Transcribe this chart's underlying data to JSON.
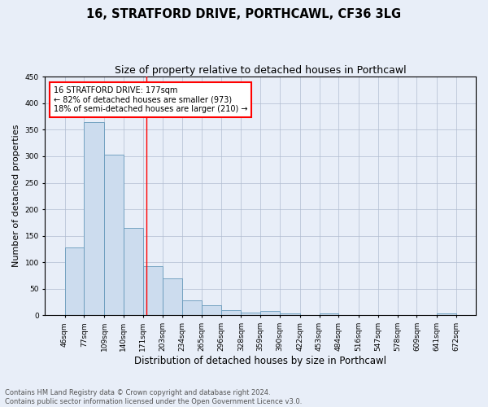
{
  "title1": "16, STRATFORD DRIVE, PORTHCAWL, CF36 3LG",
  "title2": "Size of property relative to detached houses in Porthcawl",
  "xlabel": "Distribution of detached houses by size in Porthcawl",
  "ylabel": "Number of detached properties",
  "bar_heights": [
    128,
    365,
    303,
    165,
    93,
    70,
    29,
    19,
    10,
    6,
    9,
    4,
    1,
    3,
    0,
    1,
    0,
    0,
    0,
    3
  ],
  "bar_labels": [
    "46sqm",
    "77sqm",
    "109sqm",
    "140sqm",
    "171sqm",
    "203sqm",
    "234sqm",
    "265sqm",
    "296sqm",
    "328sqm",
    "359sqm",
    "390sqm",
    "422sqm",
    "453sqm",
    "484sqm",
    "516sqm",
    "547sqm",
    "578sqm",
    "609sqm",
    "641sqm",
    "672sqm"
  ],
  "bar_color": "#ccdcee",
  "bar_edge_color": "#6699bb",
  "annotation_line1": "16 STRATFORD DRIVE: 177sqm",
  "annotation_line2": "← 82% of detached houses are smaller (973)",
  "annotation_line3": "18% of semi-detached houses are larger (210) →",
  "property_line_x": 177,
  "bin_edges": [
    46,
    77,
    109,
    140,
    171,
    203,
    234,
    265,
    296,
    328,
    359,
    390,
    422,
    453,
    484,
    516,
    547,
    578,
    609,
    641,
    672
  ],
  "ylim": [
    0,
    450
  ],
  "yticks": [
    0,
    50,
    100,
    150,
    200,
    250,
    300,
    350,
    400,
    450
  ],
  "footer_text": "Contains HM Land Registry data © Crown copyright and database right 2024.\nContains public sector information licensed under the Open Government Licence v3.0.",
  "bg_color": "#e8eef8",
  "plot_bg_color": "#e8eef8",
  "grid_color": "#b0bcd0",
  "title1_fontsize": 10.5,
  "title2_fontsize": 9,
  "xlabel_fontsize": 8.5,
  "ylabel_fontsize": 8,
  "annot_fontsize": 7,
  "footer_fontsize": 6,
  "tick_fontsize": 6.5
}
